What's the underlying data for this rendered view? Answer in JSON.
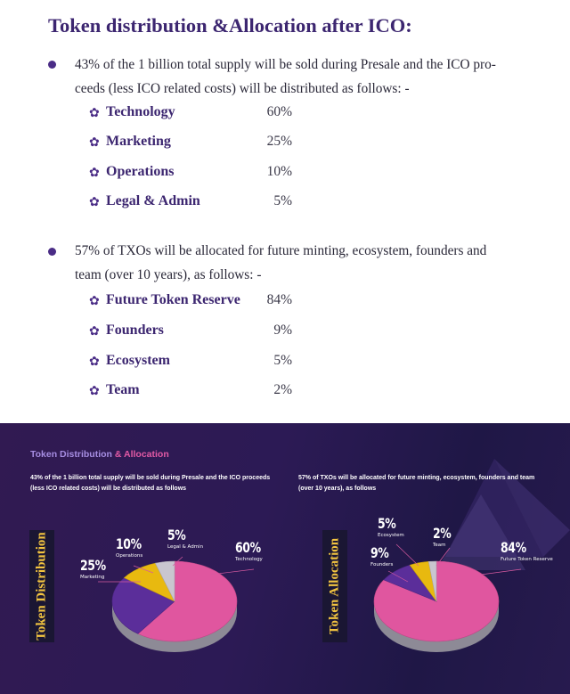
{
  "title": "Token distribution &Allocation after ICO:",
  "section1": {
    "text": "43% of the 1 billion total supply will be sold during Presale and the ICO proceeds (less ICO related costs) will be distributed as follows: -",
    "line1": "43% of the 1 billion total supply will be sold during Presale and the ICO pro-",
    "line2": "ceeds (less ICO related costs) will be distributed as follows: -",
    "items": [
      {
        "label": "Technology",
        "value": "60%"
      },
      {
        "label": "Marketing",
        "value": "25%"
      },
      {
        "label": "Operations",
        "value": "10%"
      },
      {
        "label": "Legal & Admin",
        "value": "5%"
      }
    ]
  },
  "section2": {
    "line1": "57% of TXOs will be allocated for future minting, ecosystem, founders  and",
    "line2": "team (over 10 years), as follows: -",
    "items": [
      {
        "label": "Future Token Reserve",
        "value": "84%"
      },
      {
        "label": "Founders",
        "value": "9%"
      },
      {
        "label": "Ecosystem",
        "value": "5%"
      },
      {
        "label": "Team",
        "value": "2%"
      }
    ]
  },
  "banner": {
    "title_part1": "Token Distribution",
    "title_part2": " & Allocation",
    "distribution": {
      "desc_line1": "43% of the 1 billion total supply will be sold during Presale and the ICO proceeds",
      "desc_line2": "(less ICO related costs) will be distributed as follows",
      "side_label": "Token Distribution",
      "slices": [
        {
          "name": "Technology",
          "value": 60,
          "label": "60%",
          "color": "#e0569f"
        },
        {
          "name": "Marketing",
          "value": 25,
          "label": "25%",
          "color": "#5b2e9a"
        },
        {
          "name": "Operations",
          "value": 10,
          "label": "10%",
          "color": "#e8b90f"
        },
        {
          "name": "Legal & Admin",
          "value": 5,
          "label": "5%",
          "color": "#c9c6cf"
        }
      ]
    },
    "allocation": {
      "desc_line1": "57% of TXOs will be allocated for future minting, ecosystem, founders and team",
      "desc_line2": "(over 10 years), as follows",
      "side_label": "Token Allocation",
      "slices": [
        {
          "name": "Future Token Reserve",
          "value": 84,
          "label": "84%",
          "color": "#e0569f"
        },
        {
          "name": "Founders",
          "value": 9,
          "label": "9%",
          "color": "#5b2e9a"
        },
        {
          "name": "Ecosystem",
          "value": 5,
          "label": "5%",
          "color": "#e8b90f"
        },
        {
          "name": "Team",
          "value": 2,
          "label": "2%",
          "color": "#c9c6cf"
        }
      ]
    }
  }
}
